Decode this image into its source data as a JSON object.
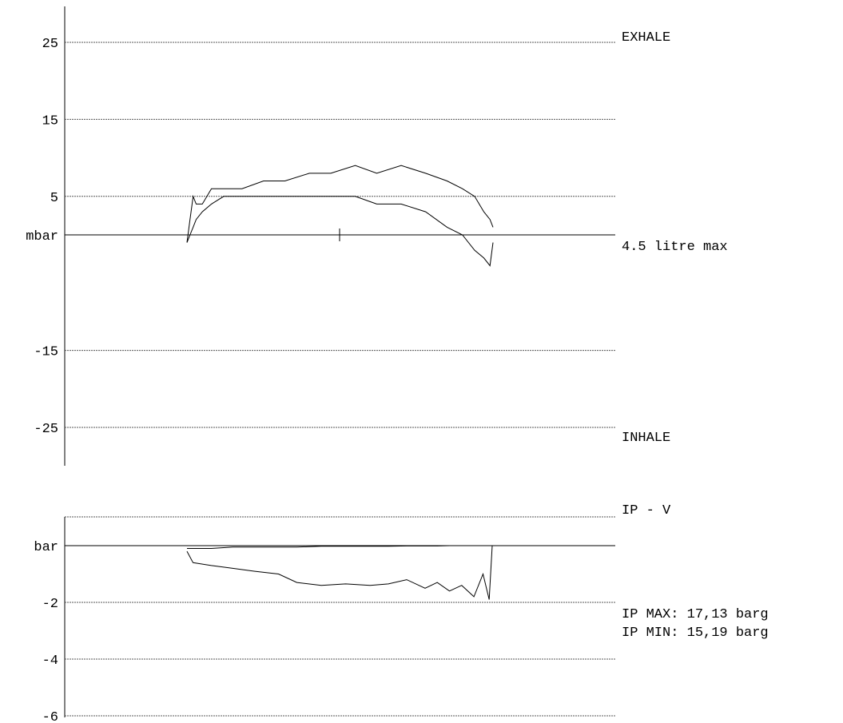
{
  "chart_data": [
    {
      "type": "line",
      "title": "",
      "ylabel": "mbar",
      "xlabel": "",
      "ylim": [
        -30,
        30
      ],
      "yticks": [
        25,
        15,
        5,
        -15,
        -25
      ],
      "ytick_labels": [
        "25",
        "15",
        "5",
        "-15",
        "-25"
      ],
      "grid": true,
      "annotations": {
        "top": "EXHALE",
        "zero": "4.5 litre max",
        "bottom": "INHALE"
      },
      "x": [
        0.0,
        0.01,
        0.02,
        0.03,
        0.05,
        0.08,
        0.12,
        0.18,
        0.25,
        0.32,
        0.4,
        0.47,
        0.55,
        0.62,
        0.7,
        0.78,
        0.85,
        0.9,
        0.94,
        0.97,
        0.99,
        1.0
      ],
      "series": [
        {
          "values": [
            -1,
            2,
            5,
            4,
            4,
            6,
            6,
            6,
            7,
            7,
            8,
            8,
            9,
            8,
            9,
            8,
            7,
            6,
            5,
            3,
            2,
            1
          ]
        },
        {
          "values": [
            -1,
            0,
            1,
            2,
            3,
            4,
            5,
            5,
            5,
            5,
            5,
            5,
            5,
            4,
            4,
            3,
            1,
            0,
            -2,
            -3,
            -4,
            -1
          ]
        }
      ]
    },
    {
      "type": "line",
      "title": "",
      "ylabel": "bar",
      "xlabel": "",
      "ylim": [
        -6,
        1
      ],
      "yticks": [
        -2,
        -4,
        -6
      ],
      "ytick_labels": [
        "-2",
        "-4",
        "-6"
      ],
      "grid": true,
      "annotations": {
        "top": "IP - V",
        "stats": [
          "IP MAX: 17,13 barg",
          "IP MIN: 15,19 barg"
        ]
      },
      "x": [
        0.0,
        0.02,
        0.08,
        0.15,
        0.22,
        0.3,
        0.36,
        0.44,
        0.52,
        0.6,
        0.66,
        0.72,
        0.78,
        0.82,
        0.86,
        0.9,
        0.94,
        0.97,
        0.99,
        1.0
      ],
      "series": [
        {
          "values": [
            -0.2,
            -0.6,
            -0.7,
            -0.8,
            -0.9,
            -1.0,
            -1.3,
            -1.4,
            -1.35,
            -1.4,
            -1.35,
            -1.2,
            -1.5,
            -1.3,
            -1.6,
            -1.4,
            -1.8,
            -1.0,
            -1.9,
            0.0
          ]
        },
        {
          "values": [
            -0.1,
            -0.1,
            -0.1,
            -0.05,
            -0.05,
            -0.05,
            -0.05,
            -0.02,
            -0.02,
            -0.02,
            -0.02,
            -0.01,
            -0.01,
            -0.01,
            0.0,
            0.0,
            0.0,
            0.0,
            0.0,
            0.0
          ]
        }
      ]
    }
  ]
}
